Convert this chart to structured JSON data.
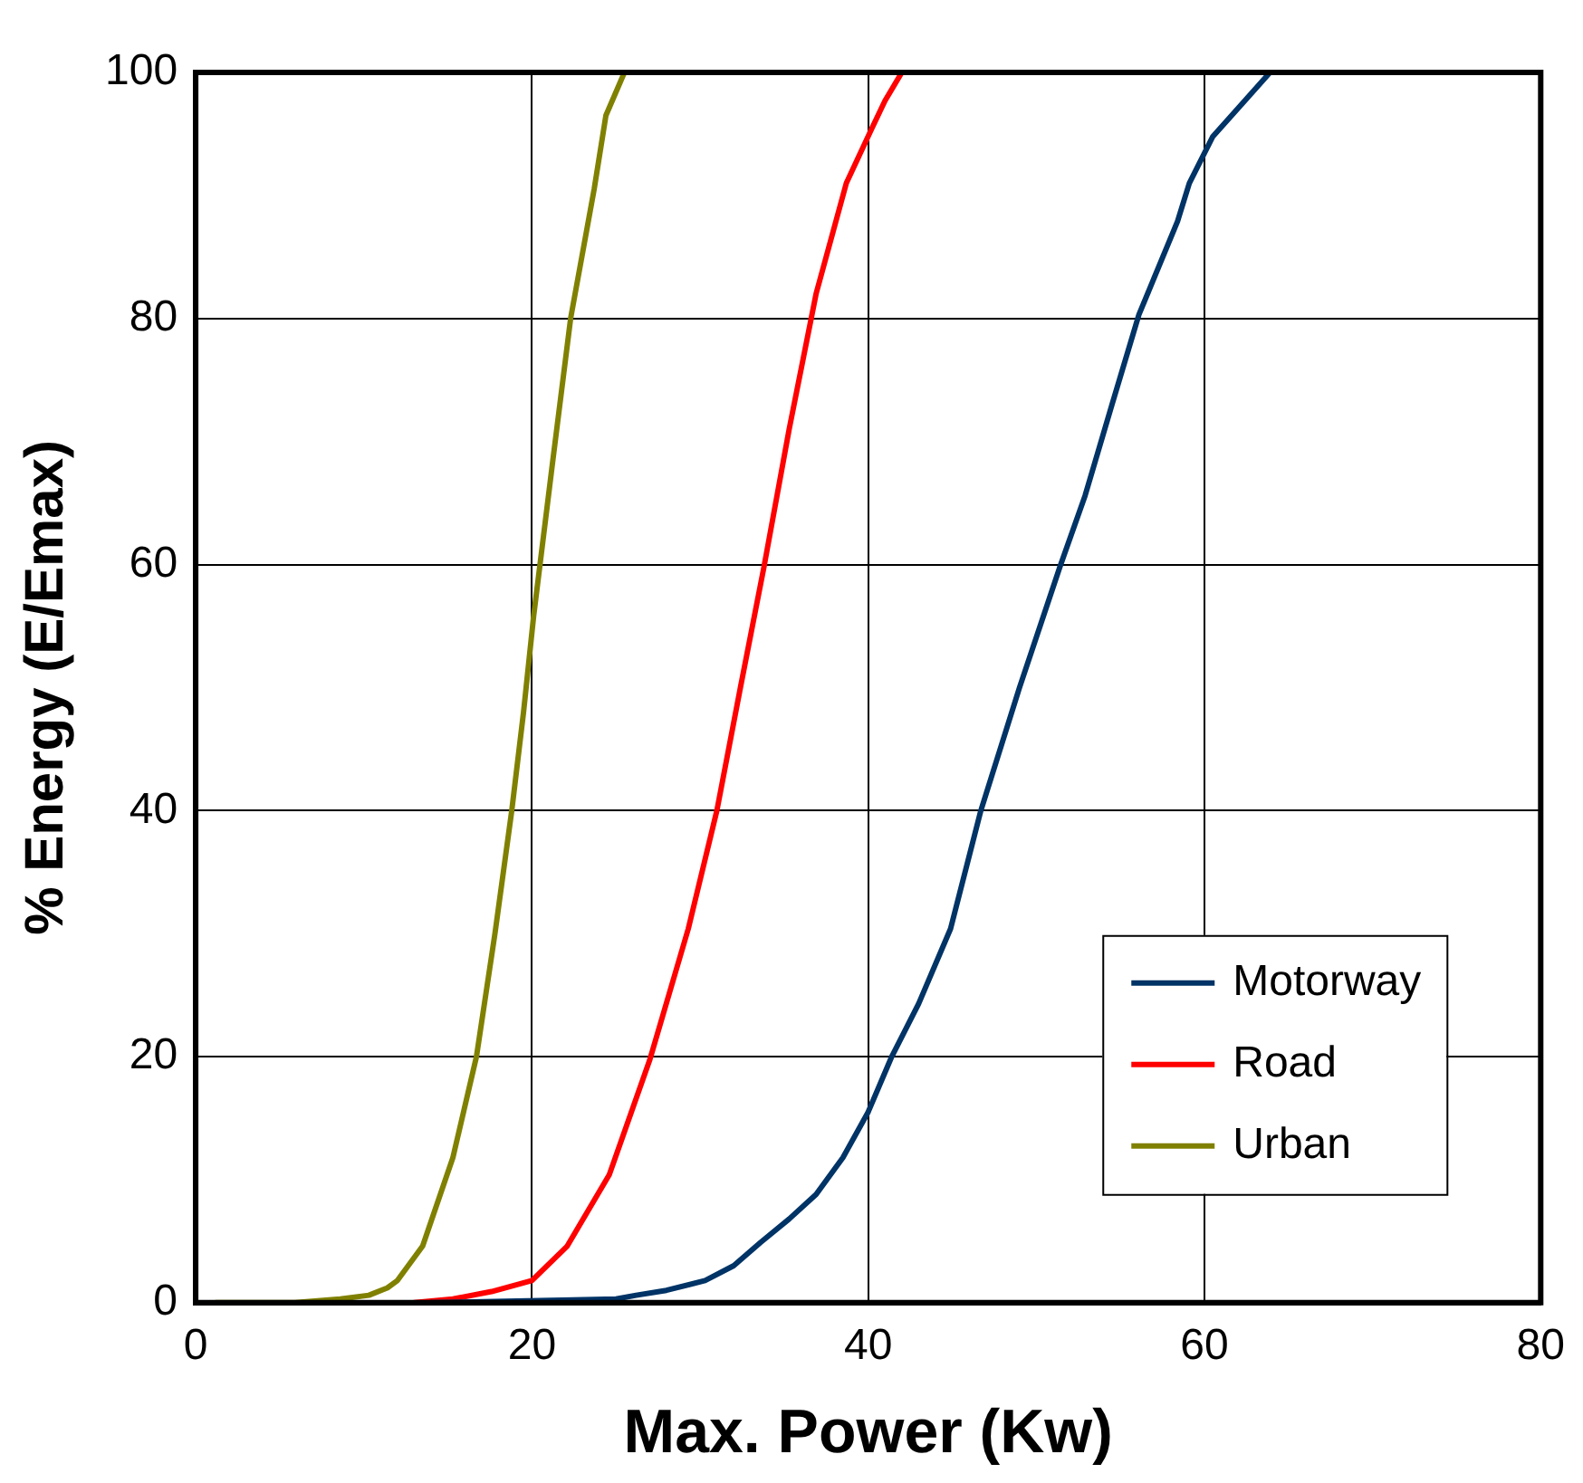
{
  "chart_data": {
    "type": "line",
    "xlabel": "Max. Power (Kw)",
    "ylabel": "% Energy (E/Emax)",
    "xlim": [
      0,
      80
    ],
    "xticks": [
      0,
      20,
      40,
      60,
      80
    ],
    "ylim": [
      0,
      100
    ],
    "yticks": [
      0,
      20,
      40,
      60,
      80,
      100
    ],
    "grid": true,
    "legend": "bottom right",
    "marker": "none",
    "line_style": "solid",
    "series": [
      {
        "name": "Motorway",
        "color": "#003366",
        "x": [
          14,
          21.8,
          25,
          26.2,
          28,
          30.3,
          32,
          33.6,
          35.3,
          36.9,
          38.5,
          40,
          41.4,
          43,
          44.9,
          46.7,
          49,
          51.4,
          52.9,
          54.5,
          56.1,
          58.4,
          59.1,
          60.5,
          62.4,
          63.9
        ],
        "values": [
          0,
          0.2,
          0.3,
          0.6,
          1,
          1.8,
          3,
          4.9,
          6.8,
          8.8,
          11.8,
          15.5,
          20,
          24.3,
          30.4,
          40,
          50,
          59.8,
          65.6,
          73,
          80.3,
          87.9,
          91,
          94.8,
          97.7,
          100
        ]
      },
      {
        "name": "Road",
        "color": "#ff0000",
        "x": [
          13,
          15.3,
          17.6,
          20,
          22.1,
          24.6,
          27,
          29.3,
          31,
          32.4,
          33.8,
          35.3,
          36.9,
          38.7,
          40.2,
          41,
          42
        ],
        "values": [
          0,
          0.3,
          0.9,
          1.8,
          4.6,
          10.4,
          19.7,
          30.4,
          40,
          50,
          59.8,
          71,
          82,
          91,
          95.4,
          97.7,
          100
        ]
      },
      {
        "name": "Urban",
        "color": "#808000",
        "x": [
          1.2,
          5.9,
          8.6,
          10.3,
          11.4,
          12,
          13.5,
          15.3,
          16.7,
          17.8,
          18.8,
          19.5,
          20.1,
          21.2,
          22.3,
          23.7,
          24.4,
          25.5
        ],
        "values": [
          0,
          0,
          0.3,
          0.6,
          1.2,
          1.8,
          4.6,
          11.8,
          20,
          30,
          40,
          48,
          55.8,
          68,
          80,
          90.5,
          96.5,
          100
        ]
      }
    ]
  }
}
